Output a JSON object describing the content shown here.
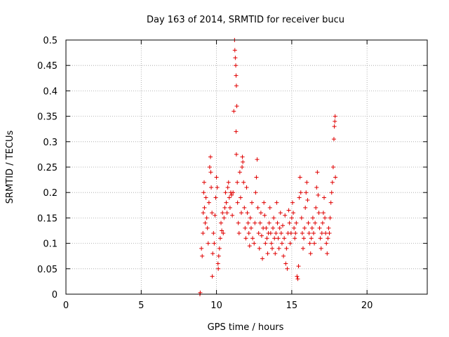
{
  "chart_data": {
    "type": "scatter",
    "title": "Day 163 of 2014, SRMTID for receiver bucu",
    "xlabel": "GPS time / hours",
    "ylabel": "SRMTID / TECUs",
    "xlim": [
      0,
      24
    ],
    "ylim": [
      0,
      0.5
    ],
    "xticks": [
      0,
      5,
      10,
      15,
      20
    ],
    "xtick_labels": [
      "0",
      "5",
      "10",
      "15",
      "20"
    ],
    "yticks": [
      0,
      0.05,
      0.1,
      0.15,
      0.2,
      0.25,
      0.3,
      0.35,
      0.4,
      0.45,
      0.5
    ],
    "ytick_labels": [
      "0",
      "0.05",
      "0.1",
      "0.15",
      "0.2",
      "0.25",
      "0.3",
      "0.35",
      "0.4",
      "0.45",
      "0.5"
    ],
    "grid": true,
    "marker": "+",
    "color": "#e00000",
    "series": [
      {
        "name": "SRMTID",
        "points": [
          [
            8.9,
            0.0
          ],
          [
            8.92,
            0.003
          ],
          [
            9.0,
            0.09
          ],
          [
            9.05,
            0.075
          ],
          [
            9.1,
            0.12
          ],
          [
            9.12,
            0.16
          ],
          [
            9.15,
            0.2
          ],
          [
            9.18,
            0.22
          ],
          [
            9.2,
            0.17
          ],
          [
            9.25,
            0.14
          ],
          [
            9.3,
            0.19
          ],
          [
            9.35,
            0.15
          ],
          [
            9.4,
            0.13
          ],
          [
            9.45,
            0.1
          ],
          [
            9.5,
            0.18
          ],
          [
            9.55,
            0.25
          ],
          [
            9.6,
            0.27
          ],
          [
            9.62,
            0.24
          ],
          [
            9.65,
            0.21
          ],
          [
            9.7,
            0.16
          ],
          [
            9.72,
            0.035
          ],
          [
            9.75,
            0.08
          ],
          [
            9.8,
            0.12
          ],
          [
            9.85,
            0.1
          ],
          [
            9.9,
            0.155
          ],
          [
            9.95,
            0.19
          ],
          [
            10.0,
            0.23
          ],
          [
            10.05,
            0.21
          ],
          [
            10.1,
            0.06
          ],
          [
            10.12,
            0.05
          ],
          [
            10.15,
            0.075
          ],
          [
            10.2,
            0.09
          ],
          [
            10.25,
            0.11
          ],
          [
            10.3,
            0.14
          ],
          [
            10.35,
            0.125
          ],
          [
            10.4,
            0.16
          ],
          [
            10.45,
            0.12
          ],
          [
            10.5,
            0.15
          ],
          [
            10.55,
            0.17
          ],
          [
            10.6,
            0.2
          ],
          [
            10.65,
            0.18
          ],
          [
            10.7,
            0.16
          ],
          [
            10.75,
            0.21
          ],
          [
            10.8,
            0.22
          ],
          [
            10.85,
            0.19
          ],
          [
            10.9,
            0.17
          ],
          [
            10.95,
            0.2
          ],
          [
            11.0,
            0.195
          ],
          [
            11.05,
            0.155
          ],
          [
            11.1,
            0.2
          ],
          [
            11.15,
            0.36
          ],
          [
            11.2,
            0.5
          ],
          [
            11.22,
            0.48
          ],
          [
            11.25,
            0.465
          ],
          [
            11.28,
            0.45
          ],
          [
            11.3,
            0.43
          ],
          [
            11.32,
            0.41
          ],
          [
            11.35,
            0.37
          ],
          [
            11.3,
            0.32
          ],
          [
            11.32,
            0.275
          ],
          [
            11.38,
            0.22
          ],
          [
            11.4,
            0.18
          ],
          [
            11.45,
            0.14
          ],
          [
            11.5,
            0.12
          ],
          [
            11.55,
            0.24
          ],
          [
            11.6,
            0.19
          ],
          [
            11.65,
            0.16
          ],
          [
            11.7,
            0.25
          ],
          [
            11.72,
            0.27
          ],
          [
            11.75,
            0.26
          ],
          [
            11.8,
            0.22
          ],
          [
            11.85,
            0.17
          ],
          [
            11.9,
            0.13
          ],
          [
            11.95,
            0.11
          ],
          [
            12.0,
            0.21
          ],
          [
            12.05,
            0.16
          ],
          [
            12.1,
            0.14
          ],
          [
            12.15,
            0.12
          ],
          [
            12.2,
            0.095
          ],
          [
            12.25,
            0.15
          ],
          [
            12.3,
            0.13
          ],
          [
            12.35,
            0.18
          ],
          [
            12.4,
            0.11
          ],
          [
            12.5,
            0.1
          ],
          [
            12.55,
            0.14
          ],
          [
            12.6,
            0.2
          ],
          [
            12.65,
            0.23
          ],
          [
            12.7,
            0.265
          ],
          [
            12.75,
            0.17
          ],
          [
            12.8,
            0.12
          ],
          [
            12.85,
            0.09
          ],
          [
            12.9,
            0.14
          ],
          [
            12.95,
            0.16
          ],
          [
            13.0,
            0.115
          ],
          [
            13.05,
            0.07
          ],
          [
            13.1,
            0.13
          ],
          [
            13.15,
            0.18
          ],
          [
            13.2,
            0.155
          ],
          [
            13.25,
            0.1
          ],
          [
            13.3,
            0.13
          ],
          [
            13.35,
            0.11
          ],
          [
            13.4,
            0.08
          ],
          [
            13.45,
            0.12
          ],
          [
            13.5,
            0.14
          ],
          [
            13.55,
            0.17
          ],
          [
            13.6,
            0.12
          ],
          [
            13.65,
            0.1
          ],
          [
            13.7,
            0.09
          ],
          [
            13.75,
            0.13
          ],
          [
            13.8,
            0.15
          ],
          [
            13.85,
            0.11
          ],
          [
            13.9,
            0.08
          ],
          [
            13.95,
            0.12
          ],
          [
            14.0,
            0.18
          ],
          [
            14.05,
            0.14
          ],
          [
            14.1,
            0.11
          ],
          [
            14.15,
            0.09
          ],
          [
            14.2,
            0.13
          ],
          [
            14.25,
            0.16
          ],
          [
            14.3,
            0.12
          ],
          [
            14.35,
            0.1
          ],
          [
            14.4,
            0.135
          ],
          [
            14.45,
            0.075
          ],
          [
            14.5,
            0.11
          ],
          [
            14.55,
            0.155
          ],
          [
            14.6,
            0.06
          ],
          [
            14.65,
            0.09
          ],
          [
            14.7,
            0.05
          ],
          [
            14.75,
            0.12
          ],
          [
            14.8,
            0.165
          ],
          [
            14.85,
            0.14
          ],
          [
            14.9,
            0.1
          ],
          [
            14.95,
            0.12
          ],
          [
            15.0,
            0.15
          ],
          [
            15.05,
            0.18
          ],
          [
            15.1,
            0.16
          ],
          [
            15.15,
            0.13
          ],
          [
            15.2,
            0.11
          ],
          [
            15.25,
            0.12
          ],
          [
            15.3,
            0.14
          ],
          [
            15.35,
            0.035
          ],
          [
            15.4,
            0.03
          ],
          [
            15.45,
            0.055
          ],
          [
            15.5,
            0.19
          ],
          [
            15.55,
            0.23
          ],
          [
            15.6,
            0.2
          ],
          [
            15.65,
            0.15
          ],
          [
            15.7,
            0.12
          ],
          [
            15.75,
            0.09
          ],
          [
            15.8,
            0.11
          ],
          [
            15.85,
            0.13
          ],
          [
            15.9,
            0.17
          ],
          [
            15.95,
            0.2
          ],
          [
            16.0,
            0.22
          ],
          [
            16.05,
            0.185
          ],
          [
            16.1,
            0.14
          ],
          [
            16.15,
            0.12
          ],
          [
            16.2,
            0.1
          ],
          [
            16.25,
            0.08
          ],
          [
            16.3,
            0.11
          ],
          [
            16.35,
            0.13
          ],
          [
            16.4,
            0.15
          ],
          [
            16.45,
            0.12
          ],
          [
            16.5,
            0.1
          ],
          [
            16.55,
            0.14
          ],
          [
            16.6,
            0.17
          ],
          [
            16.65,
            0.21
          ],
          [
            16.7,
            0.24
          ],
          [
            16.75,
            0.195
          ],
          [
            16.8,
            0.16
          ],
          [
            16.85,
            0.13
          ],
          [
            16.9,
            0.11
          ],
          [
            16.95,
            0.09
          ],
          [
            17.0,
            0.12
          ],
          [
            17.05,
            0.14
          ],
          [
            17.1,
            0.16
          ],
          [
            17.15,
            0.19
          ],
          [
            17.2,
            0.15
          ],
          [
            17.25,
            0.12
          ],
          [
            17.3,
            0.1
          ],
          [
            17.35,
            0.08
          ],
          [
            17.4,
            0.11
          ],
          [
            17.45,
            0.13
          ],
          [
            17.5,
            0.12
          ],
          [
            17.55,
            0.15
          ],
          [
            17.6,
            0.18
          ],
          [
            17.65,
            0.2
          ],
          [
            17.7,
            0.22
          ],
          [
            17.75,
            0.25
          ],
          [
            17.8,
            0.305
          ],
          [
            17.83,
            0.33
          ],
          [
            17.86,
            0.34
          ],
          [
            17.88,
            0.35
          ],
          [
            17.9,
            0.23
          ]
        ]
      }
    ]
  }
}
